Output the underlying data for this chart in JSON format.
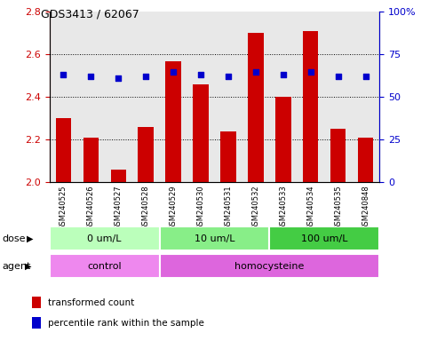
{
  "title": "GDS3413 / 62067",
  "samples": [
    "GSM240525",
    "GSM240526",
    "GSM240527",
    "GSM240528",
    "GSM240529",
    "GSM240530",
    "GSM240531",
    "GSM240532",
    "GSM240533",
    "GSM240534",
    "GSM240535",
    "GSM240848"
  ],
  "transformed_count": [
    2.3,
    2.21,
    2.06,
    2.26,
    2.57,
    2.46,
    2.24,
    2.7,
    2.4,
    2.71,
    2.25,
    2.21
  ],
  "percentile_rank": [
    63,
    62,
    61,
    62,
    65,
    63,
    62,
    65,
    63,
    65,
    62,
    62
  ],
  "ylim_left": [
    2.0,
    2.8
  ],
  "ylim_right": [
    0,
    100
  ],
  "yticks_left": [
    2.0,
    2.2,
    2.4,
    2.6,
    2.8
  ],
  "yticks_right": [
    0,
    25,
    50,
    75,
    100
  ],
  "ytick_right_labels": [
    "0",
    "25",
    "50",
    "75",
    "100%"
  ],
  "bar_color": "#cc0000",
  "dot_color": "#0000cc",
  "bar_bottom": 2.0,
  "dose_groups": [
    {
      "label": "0 um/L",
      "start": 0,
      "end": 4,
      "color": "#bbffbb"
    },
    {
      "label": "10 um/L",
      "start": 4,
      "end": 8,
      "color": "#88ee88"
    },
    {
      "label": "100 um/L",
      "start": 8,
      "end": 12,
      "color": "#44cc44"
    }
  ],
  "agent_groups": [
    {
      "label": "control",
      "start": 0,
      "end": 4,
      "color": "#ee88ee"
    },
    {
      "label": "homocysteine",
      "start": 4,
      "end": 12,
      "color": "#dd66dd"
    }
  ],
  "dose_label": "dose",
  "agent_label": "agent",
  "legend_items": [
    {
      "label": "transformed count",
      "color": "#cc0000"
    },
    {
      "label": "percentile rank within the sample",
      "color": "#0000cc"
    }
  ],
  "left_axis_color": "#cc0000",
  "right_axis_color": "#0000cc",
  "plot_bg_color": "#e8e8e8",
  "fig_bg_color": "#ffffff",
  "grid_yticks": [
    2.2,
    2.4,
    2.6
  ]
}
